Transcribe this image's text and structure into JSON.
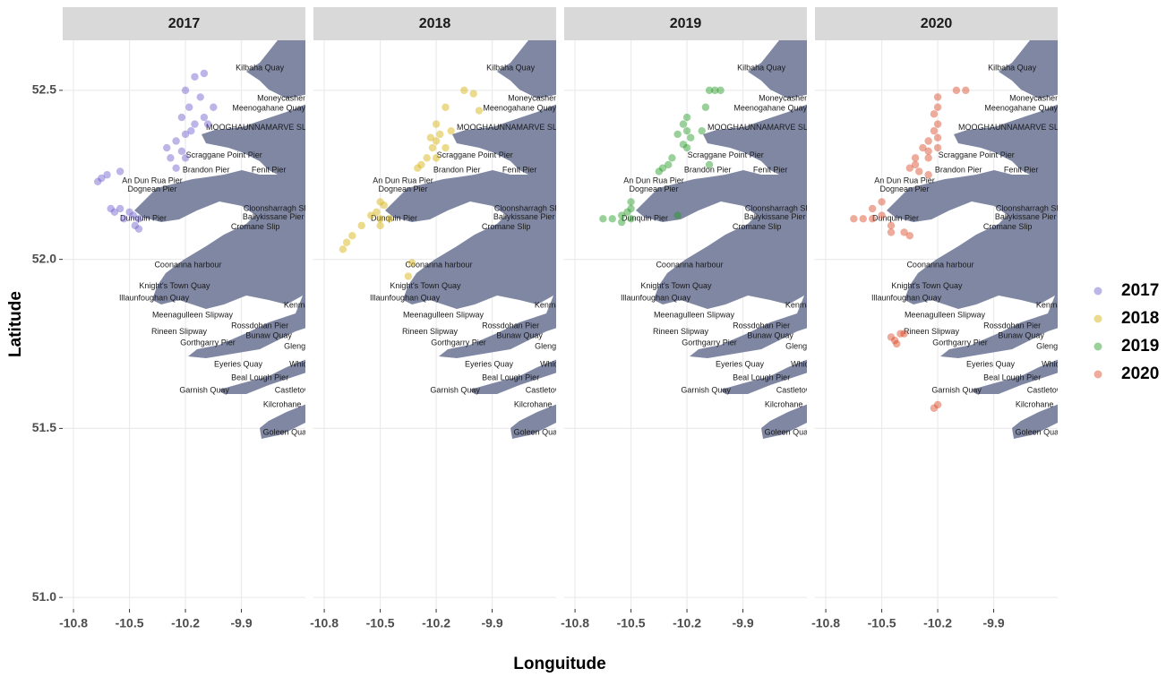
{
  "chart_data": {
    "type": "scatter",
    "x_label": "Longuitude",
    "y_label": "Latitude",
    "xlim": [
      -10.858,
      -9.557
    ],
    "ylim": [
      50.966,
      52.648
    ],
    "xticks": [
      -10.8,
      -10.5,
      -10.2,
      -9.9
    ],
    "yticks": [
      {
        "value": 51,
        "label": "51.0"
      },
      51.5,
      {
        "value": 52,
        "label": "52.0"
      },
      52.5
    ],
    "grid": true,
    "legend": "right",
    "series": [
      {
        "name": "2017",
        "color": "#6a5acd",
        "x": [
          -10.15,
          -10.1,
          -10.2,
          -10.12,
          -10.05,
          -10.18,
          -10.1,
          -10.15,
          -10.22,
          -10.08,
          -10.2,
          -10.25,
          -10.22,
          -10.28,
          -10.3,
          -10.25,
          -10.2,
          -10.17,
          -10.62,
          -10.65,
          -10.67,
          -10.55,
          -10.55,
          -10.5,
          -10.48,
          -10.53,
          -10.58,
          -10.45,
          -10.47,
          -10.45,
          -10.6
        ],
        "y": [
          52.54,
          52.55,
          52.5,
          52.48,
          52.45,
          52.45,
          52.42,
          52.4,
          52.42,
          52.4,
          52.37,
          52.35,
          52.32,
          52.3,
          52.33,
          52.27,
          52.3,
          52.38,
          52.25,
          52.24,
          52.23,
          52.26,
          52.15,
          52.14,
          52.13,
          52.12,
          52.14,
          52.12,
          52.1,
          52.09,
          52.15
        ]
      },
      {
        "name": "2018",
        "color": "#d4af00",
        "x": [
          -10.05,
          -10.0,
          -9.97,
          -10.15,
          -10.2,
          -10.18,
          -10.2,
          -10.22,
          -10.15,
          -10.25,
          -10.2,
          -10.28,
          -10.3,
          -10.12,
          -10.23,
          -10.5,
          -10.48,
          -10.52,
          -10.5,
          -10.55,
          -10.6,
          -10.65,
          -10.68,
          -10.7,
          -10.5,
          -10.33,
          -10.35,
          -10.45
        ],
        "y": [
          52.5,
          52.49,
          52.44,
          52.45,
          52.4,
          52.37,
          52.35,
          52.33,
          52.33,
          52.3,
          52.3,
          52.28,
          52.27,
          52.38,
          52.36,
          52.17,
          52.16,
          52.14,
          52.12,
          52.13,
          52.1,
          52.07,
          52.05,
          52.03,
          52.1,
          51.99,
          51.95,
          52.12
        ]
      },
      {
        "name": "2019",
        "color": "#1f9a1f",
        "x": [
          -10.05,
          -10.08,
          -10.02,
          -10.1,
          -10.2,
          -10.22,
          -10.2,
          -10.25,
          -10.18,
          -10.22,
          -10.2,
          -10.12,
          -10.08,
          -10.3,
          -10.33,
          -10.35,
          -10.28,
          -10.5,
          -10.5,
          -10.52,
          -10.5,
          -10.55,
          -10.6,
          -10.65,
          -10.55,
          -10.25
        ],
        "y": [
          52.5,
          52.5,
          52.5,
          52.45,
          52.42,
          52.4,
          52.38,
          52.37,
          52.36,
          52.34,
          52.33,
          52.38,
          52.28,
          52.28,
          52.27,
          52.26,
          52.3,
          52.17,
          52.15,
          52.14,
          52.12,
          52.13,
          52.12,
          52.12,
          52.11,
          52.13
        ]
      },
      {
        "name": "2020",
        "color": "#d9431e",
        "x": [
          -10.1,
          -10.05,
          -10.2,
          -10.2,
          -10.22,
          -10.2,
          -10.22,
          -10.2,
          -10.25,
          -10.2,
          -10.25,
          -10.28,
          -10.32,
          -10.35,
          -10.3,
          -10.32,
          -10.25,
          -10.25,
          -10.5,
          -10.55,
          -10.5,
          -10.55,
          -10.6,
          -10.65,
          -10.45,
          -10.45,
          -10.35,
          -10.38,
          -10.4,
          -10.42,
          -10.45,
          -10.43,
          -10.38,
          -10.2,
          -10.22
        ],
        "y": [
          52.5,
          52.5,
          52.48,
          52.45,
          52.43,
          52.4,
          52.38,
          52.36,
          52.35,
          52.33,
          52.32,
          52.33,
          52.3,
          52.27,
          52.26,
          52.28,
          52.25,
          52.3,
          52.17,
          52.15,
          52.13,
          52.12,
          52.12,
          52.12,
          52.1,
          52.08,
          52.07,
          52.08,
          51.78,
          51.75,
          51.77,
          51.76,
          51.78,
          51.57,
          51.56
        ]
      }
    ],
    "places": [
      {
        "name": "Kilbaha Quay",
        "lon": -9.801,
        "lat": 52.566
      },
      {
        "name": "Moneycashen",
        "lon": -9.681,
        "lat": 52.476
      },
      {
        "name": "Meenogahane Quay",
        "lon": -9.753,
        "lat": 52.447
      },
      {
        "name": "MOOGHAUNNAMARVE SLIP",
        "lon": -9.801,
        "lat": 52.389
      },
      {
        "name": "Scraggane Point Pier",
        "lon": -9.993,
        "lat": 52.307
      },
      {
        "name": "Fenit Pier",
        "lon": -9.753,
        "lat": 52.264
      },
      {
        "name": "Brandon Pier",
        "lon": -10.089,
        "lat": 52.264
      },
      {
        "name": "An Dun Rua Pier",
        "lon": -10.378,
        "lat": 52.232
      },
      {
        "name": "Dognean Pier",
        "lon": -10.378,
        "lat": 52.206
      },
      {
        "name": "Cloonsharragh Slip",
        "lon": -9.705,
        "lat": 52.15
      },
      {
        "name": "Ballykissane Pier",
        "lon": -9.729,
        "lat": 52.124
      },
      {
        "name": "Dunquin Pier",
        "lon": -10.426,
        "lat": 52.121
      },
      {
        "name": "Cromane Slip",
        "lon": -9.825,
        "lat": 52.095
      },
      {
        "name": "Coonanna harbour",
        "lon": -10.186,
        "lat": 51.983
      },
      {
        "name": "Knight's Town Quay",
        "lon": -10.258,
        "lat": 51.92
      },
      {
        "name": "Illaunfoughan Quay",
        "lon": -10.368,
        "lat": 51.885
      },
      {
        "name": "Kenmare",
        "lon": -9.585,
        "lat": 51.864
      },
      {
        "name": "Meenagulleen Slipway",
        "lon": -10.162,
        "lat": 51.835
      },
      {
        "name": "Rossdohan Pier",
        "lon": -9.801,
        "lat": 51.803
      },
      {
        "name": "Rineen Slipway",
        "lon": -10.234,
        "lat": 51.785
      },
      {
        "name": "Bunaw Quay",
        "lon": -9.753,
        "lat": 51.774
      },
      {
        "name": "Gorthgarry Pier",
        "lon": -10.08,
        "lat": 51.753
      },
      {
        "name": "Glengarriff",
        "lon": -9.571,
        "lat": 51.742
      },
      {
        "name": "Eyeries Quay",
        "lon": -9.917,
        "lat": 51.689
      },
      {
        "name": "Whiddy",
        "lon": -9.571,
        "lat": 51.689
      },
      {
        "name": "Beal Lough Pier",
        "lon": -9.801,
        "lat": 51.649
      },
      {
        "name": "Garnish Quay",
        "lon": -10.099,
        "lat": 51.612
      },
      {
        "name": "Castletownbere",
        "lon": -9.571,
        "lat": 51.612
      },
      {
        "name": "Kilcrohane",
        "lon": -9.681,
        "lat": 51.57
      },
      {
        "name": "Goleen Quay",
        "lon": -9.657,
        "lat": 51.488
      }
    ]
  }
}
